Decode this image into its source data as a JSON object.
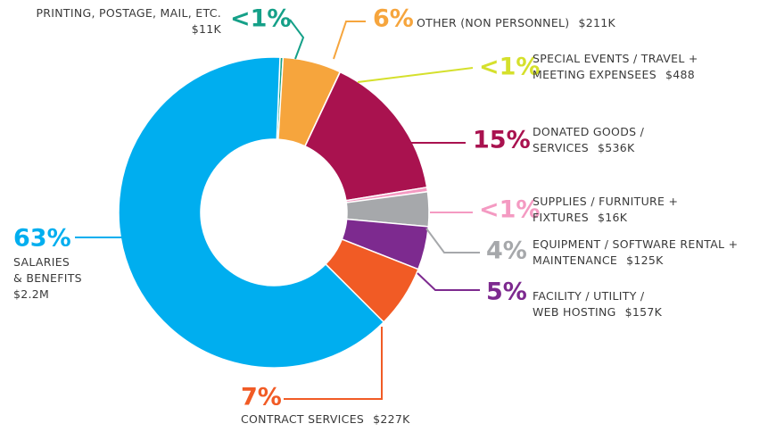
{
  "chart_data": {
    "type": "donut",
    "categories": [
      [
        "PRINTING, POSTAGE, MAIL, ETC."
      ],
      [
        "OTHER (NON PERSONNEL)"
      ],
      [
        "SPECIAL EVENTS / TRAVEL +",
        "MEETING EXPENSEES"
      ],
      [
        "DONATED GOODS /",
        "SERVICES"
      ],
      [
        "SUPPLIES / FURNITURE +",
        "FIXTURES"
      ],
      [
        "EQUIPMENT / SOFTWARE RENTAL +",
        "MAINTENANCE"
      ],
      [
        "FACILITY / UTILITY /",
        "WEB HOSTING"
      ],
      [
        "CONTRACT SERVICES"
      ],
      [
        "SALARIES",
        "& BENEFITS"
      ]
    ],
    "values": [
      11000,
      211000,
      488,
      536000,
      16000,
      125000,
      157000,
      227000,
      2200000
    ],
    "value_labels": [
      "$11K",
      "$211K",
      "$488",
      "$536K",
      "$16K",
      "$125K",
      "$157K",
      "$227K",
      "$2.2M"
    ],
    "share_labels": [
      "<1%",
      "6%",
      "<1%",
      "15%",
      "<1%",
      "4%",
      "5%",
      "7%",
      "63%"
    ],
    "colors": [
      "#15a088",
      "#f6a53d",
      "#d5e02c",
      "#a9124f",
      "#f49ac2",
      "#a6a8ab",
      "#7d2a8f",
      "#f15b25",
      "#00aeef"
    ]
  }
}
